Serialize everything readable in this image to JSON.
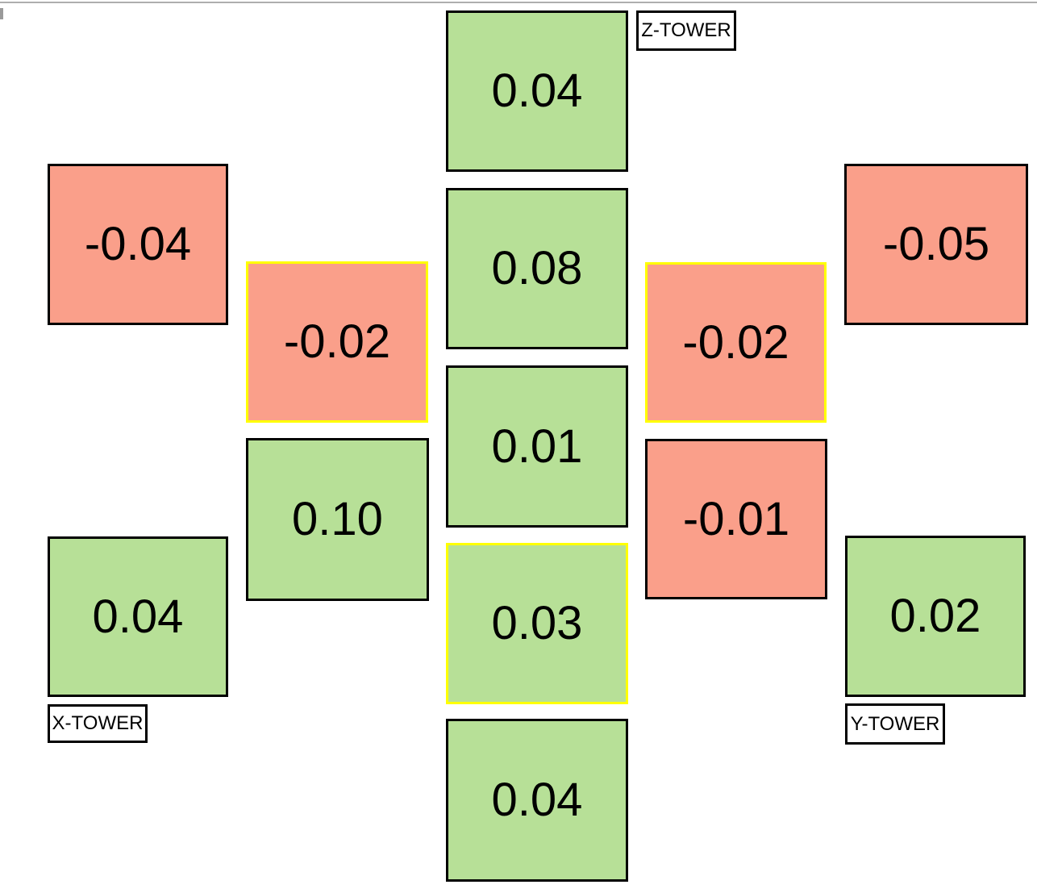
{
  "colors": {
    "positive_fill": "#b7e097",
    "negative_fill": "#fa9f8a",
    "highlight_border": "#ffff00",
    "default_border": "#000000",
    "background": "#ffffff",
    "window_edge": "#aeaeae"
  },
  "towers": {
    "z": "Z-TOWER",
    "x": "X-TOWER",
    "y": "Y-TOWER"
  },
  "cells": [
    {
      "id": "center-top",
      "value": "0.04",
      "highlighted": false
    },
    {
      "id": "center-upper",
      "value": "0.08",
      "highlighted": false
    },
    {
      "id": "center-middle",
      "value": "0.01",
      "highlighted": false
    },
    {
      "id": "center-lower",
      "value": "0.03",
      "highlighted": true
    },
    {
      "id": "center-bottom",
      "value": "0.04",
      "highlighted": false
    },
    {
      "id": "left-outer-top",
      "value": "-0.04",
      "highlighted": false
    },
    {
      "id": "left-inner-top",
      "value": "-0.02",
      "highlighted": true
    },
    {
      "id": "left-inner-bottom",
      "value": "0.10",
      "highlighted": false
    },
    {
      "id": "left-outer-bottom",
      "value": "0.04",
      "highlighted": false
    },
    {
      "id": "right-inner-top",
      "value": "-0.02",
      "highlighted": true
    },
    {
      "id": "right-inner-bottom",
      "value": "-0.01",
      "highlighted": false
    },
    {
      "id": "right-outer-top",
      "value": "-0.05",
      "highlighted": false
    },
    {
      "id": "right-outer-bottom",
      "value": "0.02",
      "highlighted": false
    }
  ],
  "chart_data": {
    "type": "heatmap",
    "title": "",
    "legend_position": "none",
    "tower_labels": [
      "Z-TOWER",
      "X-TOWER",
      "Y-TOWER"
    ],
    "color_encoding": {
      "positive": "#b7e097",
      "negative": "#fa9f8a",
      "selected_outline": "#ffff00"
    },
    "points": [
      {
        "location": "center-top",
        "value": 0.04,
        "highlighted": false
      },
      {
        "location": "center-upper",
        "value": 0.08,
        "highlighted": false
      },
      {
        "location": "center-middle",
        "value": 0.01,
        "highlighted": false
      },
      {
        "location": "center-lower",
        "value": 0.03,
        "highlighted": true
      },
      {
        "location": "center-bottom",
        "value": 0.04,
        "highlighted": false
      },
      {
        "location": "left-outer-top",
        "value": -0.04,
        "highlighted": false
      },
      {
        "location": "left-inner-top",
        "value": -0.02,
        "highlighted": true
      },
      {
        "location": "left-inner-bottom",
        "value": 0.1,
        "highlighted": false
      },
      {
        "location": "left-outer-bottom (X-TOWER)",
        "value": 0.04,
        "highlighted": false
      },
      {
        "location": "right-inner-top",
        "value": -0.02,
        "highlighted": true
      },
      {
        "location": "right-inner-bottom",
        "value": -0.01,
        "highlighted": false
      },
      {
        "location": "right-outer-top",
        "value": -0.05,
        "highlighted": false
      },
      {
        "location": "right-outer-bottom (Y-TOWER)",
        "value": 0.02,
        "highlighted": false
      },
      {
        "location": "top-of-center-column (Z-TOWER)",
        "value": 0.04,
        "highlighted": false
      }
    ]
  }
}
